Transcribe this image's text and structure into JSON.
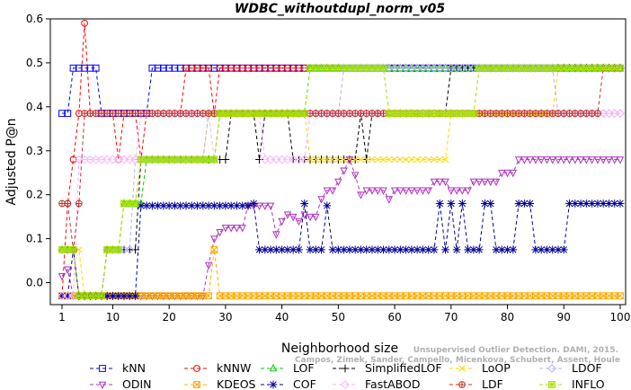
{
  "chart_data": {
    "type": "line",
    "title": "WDBC_withoutdupl_norm_v05",
    "xlabel": "Neighborhood size",
    "ylabel": "Adjusted P@n",
    "xlim": [
      0,
      100
    ],
    "ylim": [
      -0.05,
      0.6
    ],
    "x_ticks": [
      1,
      10,
      20,
      30,
      40,
      50,
      60,
      70,
      80,
      90,
      100
    ],
    "y_ticks": [
      0.0,
      0.1,
      0.2,
      0.3,
      0.4,
      0.5,
      0.6
    ],
    "y_tick_labels": [
      "0.0",
      "0.1",
      "0.2",
      "0.3",
      "0.4",
      "0.5",
      "0.6"
    ],
    "grid": false,
    "legend_position": "bottom",
    "watermark": "Campos, Zimek, Sander, Campello, Micenkova, Schubert, Assent, Houle",
    "watermark_line1": "Unsupervised Outlier Detection. DAMI, 2015.",
    "series": [
      {
        "name": "kNN",
        "color": "#0000ff",
        "marker": "square",
        "points": [
          [
            1,
            0.385
          ],
          [
            2,
            0.385
          ],
          [
            3,
            0.488
          ],
          [
            7,
            0.488
          ],
          [
            8,
            0.385
          ],
          [
            16,
            0.385
          ],
          [
            17,
            0.488
          ],
          [
            100,
            0.488
          ]
        ]
      },
      {
        "name": "kNNW",
        "color": "#ff0000",
        "marker": "circle",
        "points": [
          [
            1,
            -0.03
          ],
          [
            2,
            0.18
          ],
          [
            3,
            0.28
          ],
          [
            4,
            0.385
          ],
          [
            5,
            0.59
          ],
          [
            6,
            0.385
          ],
          [
            10,
            0.385
          ],
          [
            11,
            0.28
          ],
          [
            12,
            0.385
          ],
          [
            14,
            0.385
          ],
          [
            15,
            0.28
          ],
          [
            16,
            0.385
          ],
          [
            22,
            0.385
          ],
          [
            23,
            0.488
          ],
          [
            27,
            0.488
          ],
          [
            28,
            0.385
          ],
          [
            29,
            0.488
          ],
          [
            100,
            0.488
          ]
        ]
      },
      {
        "name": "LOF",
        "color": "#00cc00",
        "marker": "triangle-up",
        "points": [
          [
            1,
            0.075
          ],
          [
            3,
            0.075
          ],
          [
            4,
            -0.03
          ],
          [
            8,
            -0.03
          ],
          [
            9,
            0.075
          ],
          [
            11,
            0.075
          ],
          [
            12,
            0.18
          ],
          [
            15,
            0.18
          ],
          [
            16,
            0.28
          ],
          [
            28,
            0.28
          ],
          [
            29,
            0.385
          ],
          [
            44,
            0.385
          ],
          [
            45,
            0.488
          ],
          [
            100,
            0.488
          ]
        ]
      },
      {
        "name": "SimplifiedLOF",
        "color": "#000000",
        "marker": "plus",
        "points": [
          [
            1,
            0.075
          ],
          [
            3,
            0.075
          ],
          [
            4,
            -0.03
          ],
          [
            8,
            -0.03
          ],
          [
            9,
            0.075
          ],
          [
            14,
            0.075
          ],
          [
            15,
            0.28
          ],
          [
            30,
            0.28
          ],
          [
            31,
            0.385
          ],
          [
            35,
            0.385
          ],
          [
            36,
            0.28
          ],
          [
            37,
            0.385
          ],
          [
            41,
            0.385
          ],
          [
            42,
            0.28
          ],
          [
            53,
            0.28
          ],
          [
            54,
            0.385
          ],
          [
            55,
            0.28
          ],
          [
            56,
            0.385
          ],
          [
            69,
            0.385
          ],
          [
            70,
            0.488
          ],
          [
            100,
            0.488
          ]
        ]
      },
      {
        "name": "LoOP",
        "color": "#ffd700",
        "marker": "x",
        "points": [
          [
            1,
            0.075
          ],
          [
            4,
            0.075
          ],
          [
            5,
            -0.03
          ],
          [
            8,
            -0.03
          ],
          [
            9,
            0.075
          ],
          [
            11,
            0.075
          ],
          [
            12,
            0.18
          ],
          [
            14,
            0.18
          ],
          [
            15,
            0.28
          ],
          [
            26,
            0.28
          ],
          [
            27,
            0.385
          ],
          [
            44,
            0.385
          ],
          [
            45,
            0.28
          ],
          [
            69,
            0.28
          ],
          [
            70,
            0.385
          ],
          [
            88,
            0.385
          ],
          [
            89,
            0.488
          ],
          [
            100,
            0.488
          ]
        ]
      },
      {
        "name": "LDOF",
        "color": "#b0b0ff",
        "marker": "diamond",
        "points": [
          [
            1,
            0.075
          ],
          [
            3,
            0.075
          ],
          [
            4,
            -0.03
          ],
          [
            8,
            -0.03
          ],
          [
            9,
            0.075
          ],
          [
            13,
            0.075
          ],
          [
            14,
            0.28
          ],
          [
            26,
            0.28
          ],
          [
            27,
            0.385
          ],
          [
            50,
            0.385
          ],
          [
            51,
            0.488
          ],
          [
            88,
            0.488
          ],
          [
            89,
            0.385
          ],
          [
            100,
            0.385
          ]
        ]
      },
      {
        "name": "ODIN",
        "color": "#b030c0",
        "marker": "triangle-down",
        "points": [
          [
            1,
            0.015
          ],
          [
            2,
            0.03
          ],
          [
            3,
            -0.03
          ],
          [
            26,
            -0.03
          ],
          [
            27,
            0.04
          ],
          [
            28,
            0.1
          ],
          [
            29,
            0.115
          ],
          [
            30,
            0.125
          ],
          [
            33,
            0.125
          ],
          [
            34,
            0.175
          ],
          [
            38,
            0.175
          ],
          [
            39,
            0.11
          ],
          [
            40,
            0.14
          ],
          [
            41,
            0.155
          ],
          [
            42,
            0.15
          ],
          [
            43,
            0.14
          ],
          [
            44,
            0.155
          ],
          [
            45,
            0.15
          ],
          [
            47,
            0.19
          ],
          [
            48,
            0.21
          ],
          [
            50,
            0.23
          ],
          [
            51,
            0.255
          ],
          [
            52,
            0.28
          ],
          [
            53,
            0.245
          ],
          [
            54,
            0.2
          ],
          [
            55,
            0.21
          ],
          [
            58,
            0.21
          ],
          [
            59,
            0.19
          ],
          [
            60,
            0.21
          ],
          [
            66,
            0.21
          ],
          [
            67,
            0.23
          ],
          [
            69,
            0.23
          ],
          [
            70,
            0.21
          ],
          [
            72,
            0.21
          ],
          [
            74,
            0.23
          ],
          [
            78,
            0.23
          ],
          [
            79,
            0.25
          ],
          [
            81,
            0.25
          ],
          [
            82,
            0.28
          ],
          [
            100,
            0.28
          ]
        ]
      },
      {
        "name": "KDEOS",
        "color": "#ffaa00",
        "marker": "square-x",
        "points": [
          [
            1,
            -0.03
          ],
          [
            27,
            -0.03
          ],
          [
            28,
            0.075
          ],
          [
            29,
            -0.03
          ],
          [
            100,
            -0.03
          ]
        ]
      },
      {
        "name": "COF",
        "color": "#000099",
        "marker": "asterisk",
        "points": [
          [
            1,
            -0.03
          ],
          [
            2,
            -0.03
          ],
          [
            3,
            0.075
          ],
          [
            4,
            -0.03
          ],
          [
            14,
            -0.03
          ],
          [
            15,
            0.175
          ],
          [
            34,
            0.175
          ],
          [
            35,
            0.18
          ],
          [
            36,
            0.075
          ],
          [
            43,
            0.075
          ],
          [
            44,
            0.18
          ],
          [
            45,
            0.075
          ],
          [
            47,
            0.075
          ],
          [
            48,
            0.175
          ],
          [
            49,
            0.075
          ],
          [
            67,
            0.075
          ],
          [
            68,
            0.18
          ],
          [
            69,
            0.075
          ],
          [
            70,
            0.18
          ],
          [
            71,
            0.075
          ],
          [
            72,
            0.18
          ],
          [
            73,
            0.075
          ],
          [
            75,
            0.075
          ],
          [
            76,
            0.18
          ],
          [
            77,
            0.18
          ],
          [
            78,
            0.075
          ],
          [
            81,
            0.075
          ],
          [
            82,
            0.18
          ],
          [
            84,
            0.18
          ],
          [
            85,
            0.075
          ],
          [
            90,
            0.075
          ],
          [
            91,
            0.18
          ],
          [
            100,
            0.18
          ]
        ]
      },
      {
        "name": "FastABOD",
        "color": "#ffb0ff",
        "marker": "diamond-filled",
        "points": [
          [
            1,
            -0.03
          ],
          [
            3,
            -0.03
          ],
          [
            4,
            0.28
          ],
          [
            14,
            0.28
          ],
          [
            15,
            0.385
          ],
          [
            27,
            0.385
          ],
          [
            28,
            0.28
          ],
          [
            29,
            0.385
          ],
          [
            36,
            0.385
          ],
          [
            37,
            0.28
          ],
          [
            44,
            0.28
          ],
          [
            45,
            0.385
          ],
          [
            100,
            0.385
          ]
        ]
      },
      {
        "name": "LDF",
        "color": "#c03030",
        "marker": "circle-plus",
        "points": [
          [
            1,
            0.18
          ],
          [
            2,
            0.18
          ],
          [
            3,
            0.075
          ],
          [
            4,
            0.18
          ],
          [
            5,
            0.385
          ],
          [
            96,
            0.385
          ],
          [
            97,
            0.488
          ],
          [
            100,
            0.488
          ]
        ]
      },
      {
        "name": "INFLO",
        "color": "#a8e000",
        "marker": "square-star",
        "points": [
          [
            1,
            0.075
          ],
          [
            3,
            0.075
          ],
          [
            4,
            -0.03
          ],
          [
            8,
            -0.03
          ],
          [
            9,
            0.075
          ],
          [
            11,
            0.075
          ],
          [
            12,
            0.18
          ],
          [
            14,
            0.18
          ],
          [
            15,
            0.28
          ],
          [
            28,
            0.28
          ],
          [
            29,
            0.385
          ],
          [
            44,
            0.385
          ],
          [
            45,
            0.488
          ],
          [
            58,
            0.488
          ],
          [
            59,
            0.385
          ],
          [
            74,
            0.385
          ],
          [
            75,
            0.488
          ],
          [
            100,
            0.488
          ]
        ]
      }
    ]
  }
}
